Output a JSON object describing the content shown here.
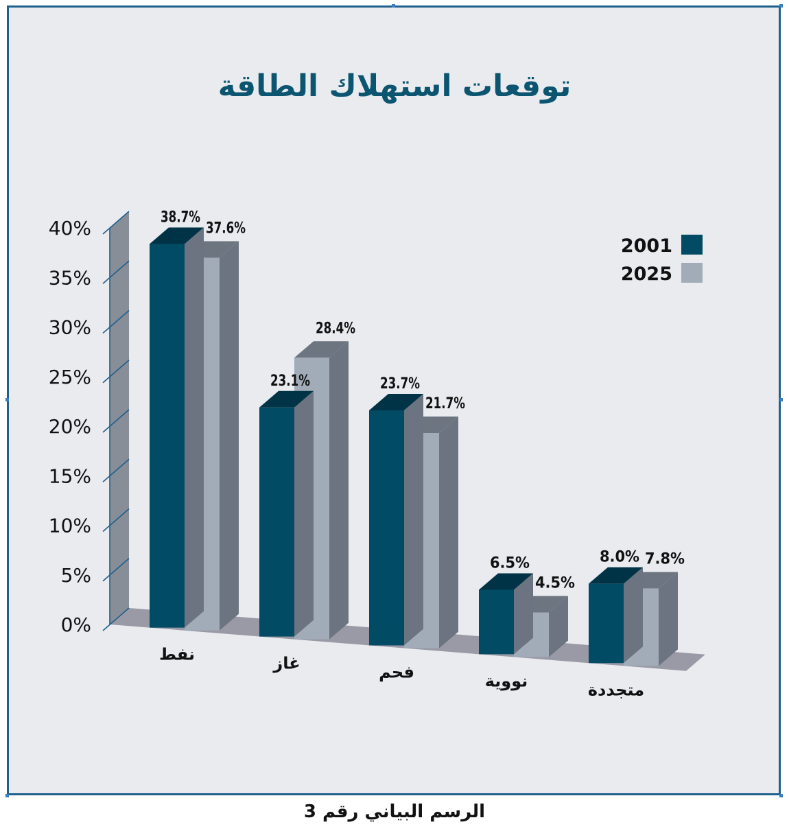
{
  "chart_data": {
    "type": "bar",
    "title": "توقعات استهلاك الطاقة",
    "categories": [
      "نفط",
      "غاز",
      "فحم",
      "نووية",
      "متجددة"
    ],
    "series": [
      {
        "name": "2001",
        "values": [
          38.7,
          23.1,
          23.7,
          6.5,
          8.0
        ],
        "labels": [
          "38.7%",
          "23.1%",
          "23.7%",
          "6.5%",
          "8.0%"
        ]
      },
      {
        "name": "2025",
        "values": [
          37.6,
          28.4,
          21.7,
          4.5,
          7.8
        ],
        "labels": [
          "37.6%",
          "28.4%",
          "21.7%",
          "4.5%",
          "7.8%"
        ]
      }
    ],
    "y_ticks": [
      "0%",
      "5%",
      "10%",
      "15%",
      "20%",
      "25%",
      "30%",
      "35%",
      "40%"
    ],
    "ylim": [
      0,
      40
    ],
    "legend_position": "top-right",
    "style": "3d"
  },
  "colors": {
    "series_2001_front": "#024b64",
    "series_2001_top": "#013347",
    "series_2001_side": "#6b7480",
    "series_2025_front": "#a1acb8",
    "series_2025_top": "#6d7581",
    "series_2025_side": "#6b7480",
    "wall": "#888e97",
    "floor": "#999aa6",
    "title": "#0c5570",
    "border": "#1e5f8c",
    "background": "#e9ebef"
  },
  "caption": "الرسم البياني رقم 3"
}
